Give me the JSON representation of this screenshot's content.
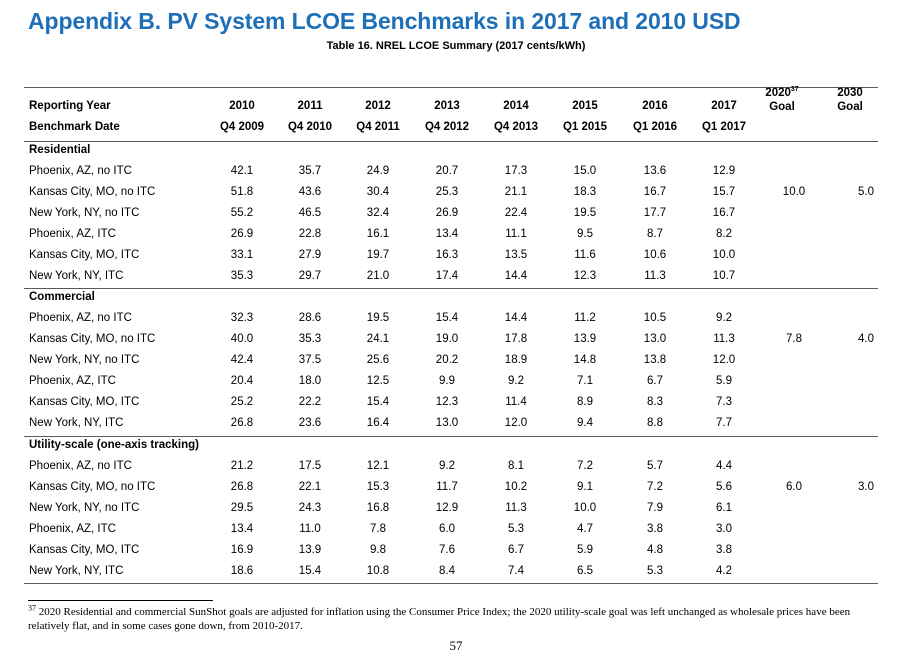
{
  "heading": "Appendix B. PV System LCOE Benchmarks in 2017 and 2010 USD",
  "caption": "Table 16. NREL LCOE Summary (2017 cents/kWh)",
  "header": {
    "reporting_year_label": "Reporting Year",
    "benchmark_date_label": "Benchmark Date",
    "years": [
      "2010",
      "2011",
      "2012",
      "2013",
      "2014",
      "2015",
      "2016",
      "2017"
    ],
    "dates": [
      "Q4 2009",
      "Q4 2010",
      "Q4 2011",
      "Q4 2012",
      "Q4 2013",
      "Q1 2015",
      "Q1 2016",
      "Q1 2017"
    ],
    "goal_2020_year": "2020",
    "goal_2020_sup": "37",
    "goal_2020_label": "Goal",
    "goal_2030_year": "2030",
    "goal_2030_label": "Goal"
  },
  "sections": [
    {
      "title": "Residential",
      "goal_2020": "10.0",
      "goal_2030": "5.0",
      "rows": [
        {
          "label": "Phoenix, AZ, no ITC",
          "values": [
            "42.1",
            "35.7",
            "24.9",
            "20.7",
            "17.3",
            "15.0",
            "13.6",
            "12.9"
          ]
        },
        {
          "label": "Kansas City, MO, no ITC",
          "values": [
            "51.8",
            "43.6",
            "30.4",
            "25.3",
            "21.1",
            "18.3",
            "16.7",
            "15.7"
          ]
        },
        {
          "label": "New York, NY, no ITC",
          "values": [
            "55.2",
            "46.5",
            "32.4",
            "26.9",
            "22.4",
            "19.5",
            "17.7",
            "16.7"
          ]
        },
        {
          "label": "Phoenix, AZ, ITC",
          "values": [
            "26.9",
            "22.8",
            "16.1",
            "13.4",
            "11.1",
            "9.5",
            "8.7",
            "8.2"
          ]
        },
        {
          "label": "Kansas City, MO, ITC",
          "values": [
            "33.1",
            "27.9",
            "19.7",
            "16.3",
            "13.5",
            "11.6",
            "10.6",
            "10.0"
          ]
        },
        {
          "label": "New York, NY, ITC",
          "values": [
            "35.3",
            "29.7",
            "21.0",
            "17.4",
            "14.4",
            "12.3",
            "11.3",
            "10.7"
          ]
        }
      ]
    },
    {
      "title": "Commercial",
      "goal_2020": "7.8",
      "goal_2030": "4.0",
      "rows": [
        {
          "label": "Phoenix, AZ, no ITC",
          "values": [
            "32.3",
            "28.6",
            "19.5",
            "15.4",
            "14.4",
            "11.2",
            "10.5",
            "9.2"
          ]
        },
        {
          "label": "Kansas City, MO, no ITC",
          "values": [
            "40.0",
            "35.3",
            "24.1",
            "19.0",
            "17.8",
            "13.9",
            "13.0",
            "11.3"
          ]
        },
        {
          "label": "New York, NY, no ITC",
          "values": [
            "42.4",
            "37.5",
            "25.6",
            "20.2",
            "18.9",
            "14.8",
            "13.8",
            "12.0"
          ]
        },
        {
          "label": "Phoenix, AZ, ITC",
          "values": [
            "20.4",
            "18.0",
            "12.5",
            "9.9",
            "9.2",
            "7.1",
            "6.7",
            "5.9"
          ]
        },
        {
          "label": "Kansas City, MO, ITC",
          "values": [
            "25.2",
            "22.2",
            "15.4",
            "12.3",
            "11.4",
            "8.9",
            "8.3",
            "7.3"
          ]
        },
        {
          "label": "New York, NY, ITC",
          "values": [
            "26.8",
            "23.6",
            "16.4",
            "13.0",
            "12.0",
            "9.4",
            "8.8",
            "7.7"
          ]
        }
      ]
    },
    {
      "title": "Utility-scale (one-axis tracking)",
      "goal_2020": "6.0",
      "goal_2030": "3.0",
      "rows": [
        {
          "label": "Phoenix, AZ, no ITC",
          "values": [
            "21.2",
            "17.5",
            "12.1",
            "9.2",
            "8.1",
            "7.2",
            "5.7",
            "4.4"
          ]
        },
        {
          "label": "Kansas City, MO, no ITC",
          "values": [
            "26.8",
            "22.1",
            "15.3",
            "11.7",
            "10.2",
            "9.1",
            "7.2",
            "5.6"
          ]
        },
        {
          "label": "New York, NY, no ITC",
          "values": [
            "29.5",
            "24.3",
            "16.8",
            "12.9",
            "11.3",
            "10.0",
            "7.9",
            "6.1"
          ]
        },
        {
          "label": "Phoenix, AZ, ITC",
          "values": [
            "13.4",
            "11.0",
            "7.8",
            "6.0",
            "5.3",
            "4.7",
            "3.8",
            "3.0"
          ]
        },
        {
          "label": "Kansas City, MO, ITC",
          "values": [
            "16.9",
            "13.9",
            "9.8",
            "7.6",
            "6.7",
            "5.9",
            "4.8",
            "3.8"
          ]
        },
        {
          "label": "New York, NY, ITC",
          "values": [
            "18.6",
            "15.4",
            "10.8",
            "8.4",
            "7.4",
            "6.5",
            "5.3",
            "4.2"
          ]
        }
      ]
    }
  ],
  "footnote": {
    "number": "37",
    "text": "2020 Residential and commercial SunShot goals are adjusted for inflation using the Consumer Price Index; the 2020 utility-scale goal was left unchanged as wholesale prices have been relatively flat, and in some cases gone down, from 2010-2017."
  },
  "page_number": "57"
}
